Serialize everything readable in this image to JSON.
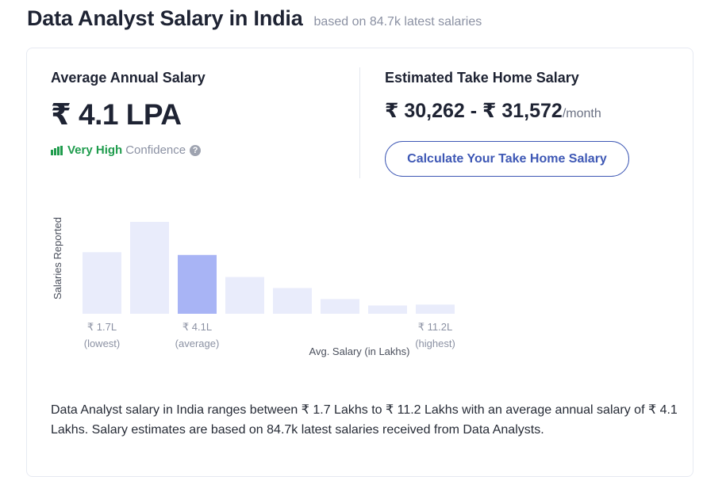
{
  "header": {
    "title": "Data Analyst Salary in India",
    "subtitle": "based on 84.7k latest salaries"
  },
  "average": {
    "label": "Average Annual Salary",
    "value": "₹ 4.1 LPA",
    "confidence_level": "Very High",
    "confidence_word": "Confidence"
  },
  "take_home": {
    "label": "Estimated Take Home Salary",
    "value": "₹ 30,262 - ₹ 31,572",
    "unit": "/month",
    "button_label": "Calculate Your Take Home Salary"
  },
  "chart_data": {
    "type": "bar",
    "ylabel": "Salaries Reported",
    "xlabel": "Avg. Salary (in Lakhs)",
    "values": [
      67,
      100,
      64,
      40,
      28,
      16,
      9,
      10
    ],
    "highlight_index": 2,
    "tick_labels": [
      {
        "index": 0,
        "value": "₹ 1.7L",
        "note": "(lowest)"
      },
      {
        "index": 2,
        "value": "₹ 4.1L",
        "note": "(average)"
      },
      {
        "index": 7,
        "value": "₹ 11.2L",
        "note": "(highest)"
      }
    ],
    "colors": {
      "bar": "#e9ecfb",
      "highlight": "#a8b4f5"
    }
  },
  "description": "Data Analyst salary in India ranges between ₹ 1.7 Lakhs to ₹ 11.2 Lakhs with an average annual salary of ₹ 4.1 Lakhs. Salary estimates are based on 84.7k latest salaries received from Data Analysts."
}
